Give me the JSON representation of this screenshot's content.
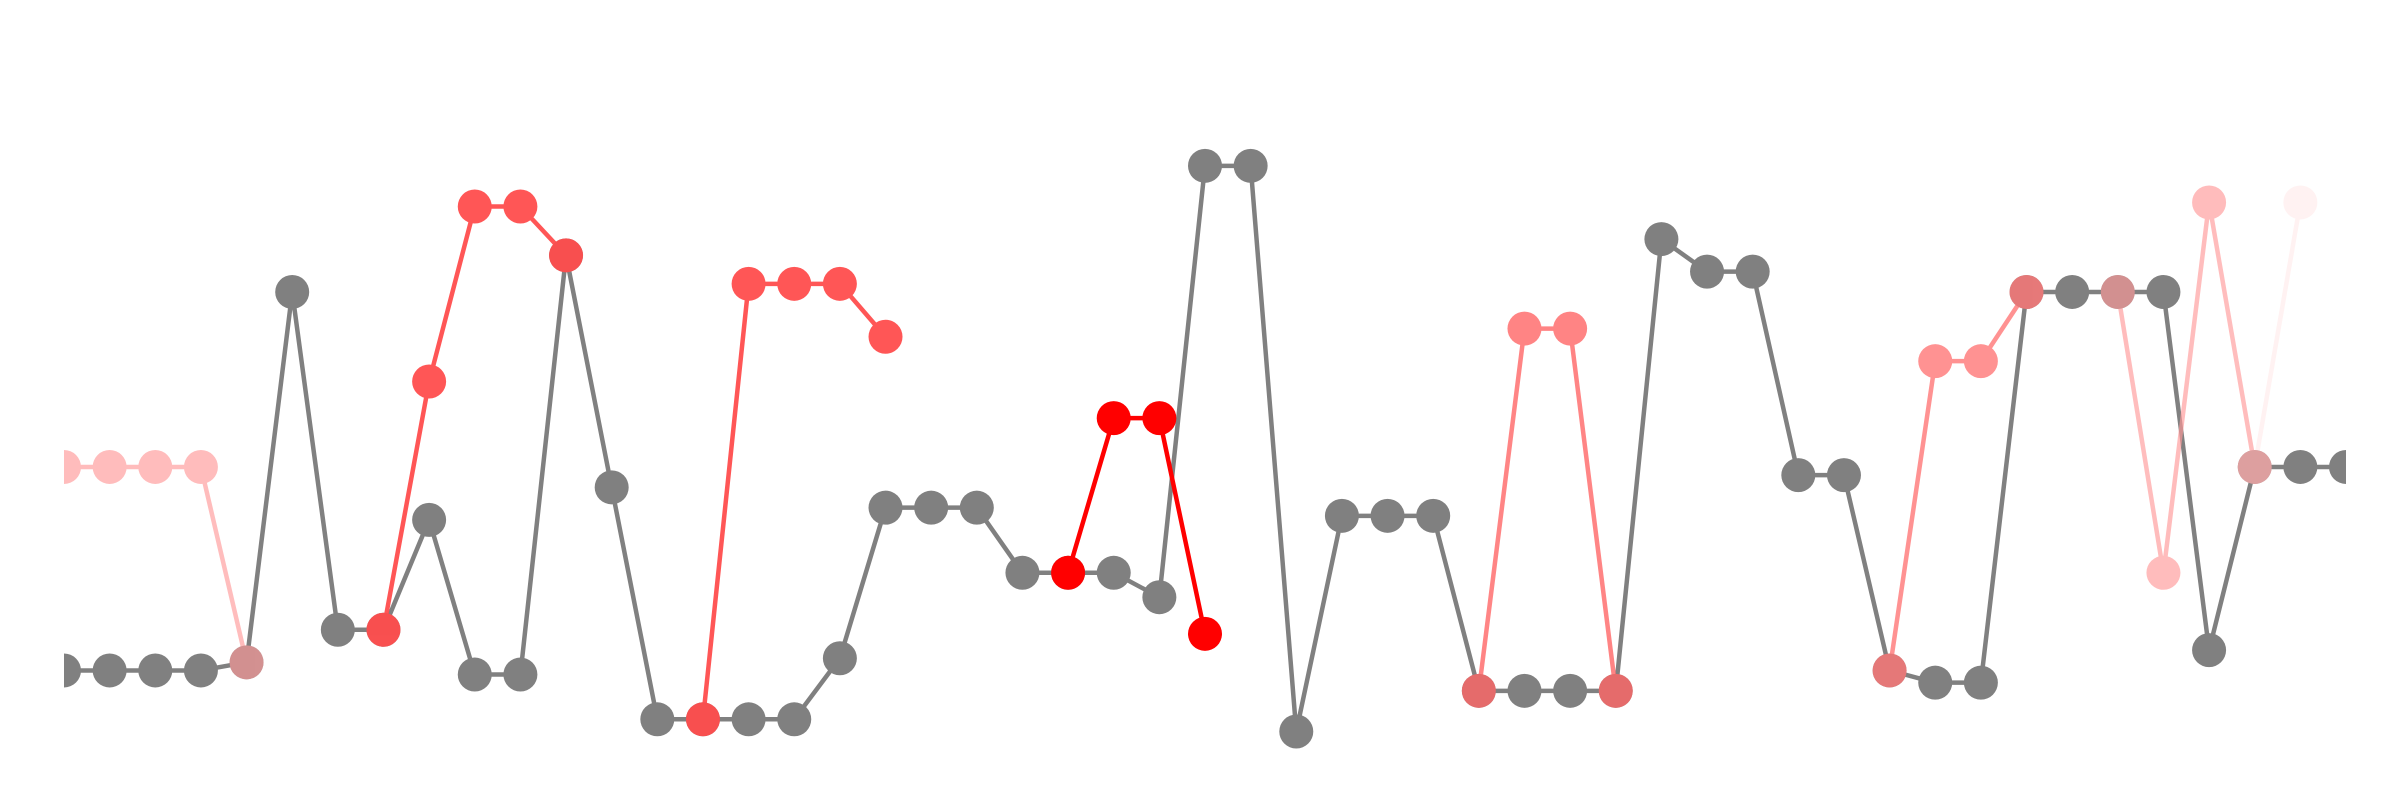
{
  "chart_data": {
    "type": "line",
    "title": "",
    "xlabel": "",
    "ylabel": "",
    "grid": false,
    "legend": "none",
    "x": [
      0,
      1,
      2,
      3,
      4,
      5,
      6,
      7,
      8,
      9,
      10,
      11,
      12,
      13,
      14,
      15,
      16,
      17,
      18,
      19,
      20,
      21,
      22,
      23,
      24,
      25,
      26,
      27,
      28,
      29,
      30,
      31,
      32,
      33,
      34,
      35,
      36,
      37,
      38,
      39,
      40,
      41,
      42,
      43,
      44,
      45,
      46,
      47,
      48,
      49,
      50
    ],
    "xlim": [
      0,
      50
    ],
    "ylim": [
      -0.2,
      17
    ],
    "series": [
      {
        "name": "",
        "color": "#808080",
        "opacity": 1.0,
        "values": [
          2,
          2,
          2,
          2,
          2.2,
          11.3,
          3,
          3,
          5.7,
          1.9,
          1.9,
          12.2,
          6.5,
          0.8,
          0.8,
          0.8,
          0.8,
          2.3,
          6,
          6,
          6,
          4.4,
          4.4,
          4.4,
          3.8,
          14.4,
          14.4,
          0.5,
          5.8,
          5.8,
          5.8,
          1.5,
          1.5,
          1.5,
          1.5,
          12.6,
          11.8,
          11.8,
          6.8,
          6.8,
          2,
          1.7,
          1.7,
          11.3,
          11.3,
          11.3,
          11.3,
          2.5,
          7,
          7,
          7
        ]
      },
      {
        "name": "",
        "color": "#ff4d4d",
        "opacity": 0.95,
        "values": [
          null,
          null,
          null,
          null,
          null,
          null,
          null,
          3,
          9.1,
          13.4,
          13.4,
          12.2,
          null,
          null,
          0.8,
          11.5,
          11.5,
          11.5,
          10.2,
          null,
          null,
          null,
          null,
          null,
          null,
          null,
          null,
          null,
          null,
          null,
          null,
          null,
          null,
          null,
          null,
          null,
          null,
          null,
          null,
          null,
          null,
          null,
          null,
          null,
          null,
          null,
          null,
          null,
          null,
          null,
          null
        ]
      },
      {
        "name": "",
        "color": "#ff0000",
        "opacity": 1.0,
        "values": [
          null,
          null,
          null,
          null,
          null,
          null,
          null,
          null,
          null,
          null,
          null,
          null,
          null,
          null,
          null,
          null,
          null,
          null,
          null,
          null,
          null,
          null,
          4.4,
          8.2,
          8.2,
          2.9,
          null,
          null,
          null,
          null,
          null,
          null,
          null,
          null,
          null,
          null,
          null,
          null,
          null,
          null,
          null,
          null,
          null,
          null,
          null,
          null,
          null,
          null,
          null,
          null,
          null
        ]
      },
      {
        "name": "",
        "color": "#ff6666",
        "opacity": 0.8,
        "values": [
          null,
          null,
          null,
          null,
          null,
          null,
          null,
          null,
          null,
          null,
          null,
          null,
          null,
          null,
          null,
          null,
          null,
          null,
          null,
          null,
          null,
          null,
          null,
          null,
          null,
          null,
          null,
          null,
          null,
          null,
          null,
          1.5,
          10.4,
          10.4,
          1.5,
          null,
          null,
          null,
          null,
          null,
          null,
          null,
          null,
          null,
          null,
          null,
          null,
          null,
          null,
          null,
          null
        ]
      },
      {
        "name": "",
        "color": "#ff7777",
        "opacity": 0.8,
        "values": [
          null,
          null,
          null,
          null,
          null,
          null,
          null,
          null,
          null,
          null,
          null,
          null,
          null,
          null,
          null,
          null,
          null,
          null,
          null,
          null,
          null,
          null,
          null,
          null,
          null,
          null,
          null,
          null,
          null,
          null,
          null,
          null,
          null,
          null,
          null,
          null,
          null,
          null,
          null,
          null,
          2,
          9.6,
          9.6,
          11.3,
          null,
          null,
          null,
          null,
          null,
          null,
          null
        ]
      },
      {
        "name": "",
        "color": "#ff9999",
        "opacity": 0.65,
        "values": [
          7,
          7,
          7,
          7,
          2.2,
          null,
          null,
          null,
          null,
          null,
          null,
          null,
          null,
          null,
          null,
          null,
          null,
          null,
          null,
          null,
          null,
          null,
          null,
          null,
          null,
          null,
          null,
          null,
          null,
          null,
          null,
          null,
          null,
          null,
          null,
          null,
          null,
          null,
          null,
          null,
          null,
          null,
          null,
          null,
          null,
          11.3,
          4.4,
          13.5,
          7,
          null,
          null
        ]
      },
      {
        "name": "",
        "color": "#ffcccc",
        "opacity": 0.25,
        "values": [
          null,
          null,
          null,
          null,
          null,
          null,
          null,
          null,
          null,
          null,
          null,
          null,
          null,
          null,
          null,
          null,
          null,
          null,
          null,
          null,
          null,
          null,
          null,
          null,
          null,
          null,
          null,
          null,
          null,
          null,
          null,
          null,
          null,
          null,
          null,
          null,
          null,
          null,
          null,
          null,
          null,
          null,
          null,
          null,
          null,
          null,
          null,
          null,
          7,
          13.5,
          null
        ]
      }
    ]
  }
}
